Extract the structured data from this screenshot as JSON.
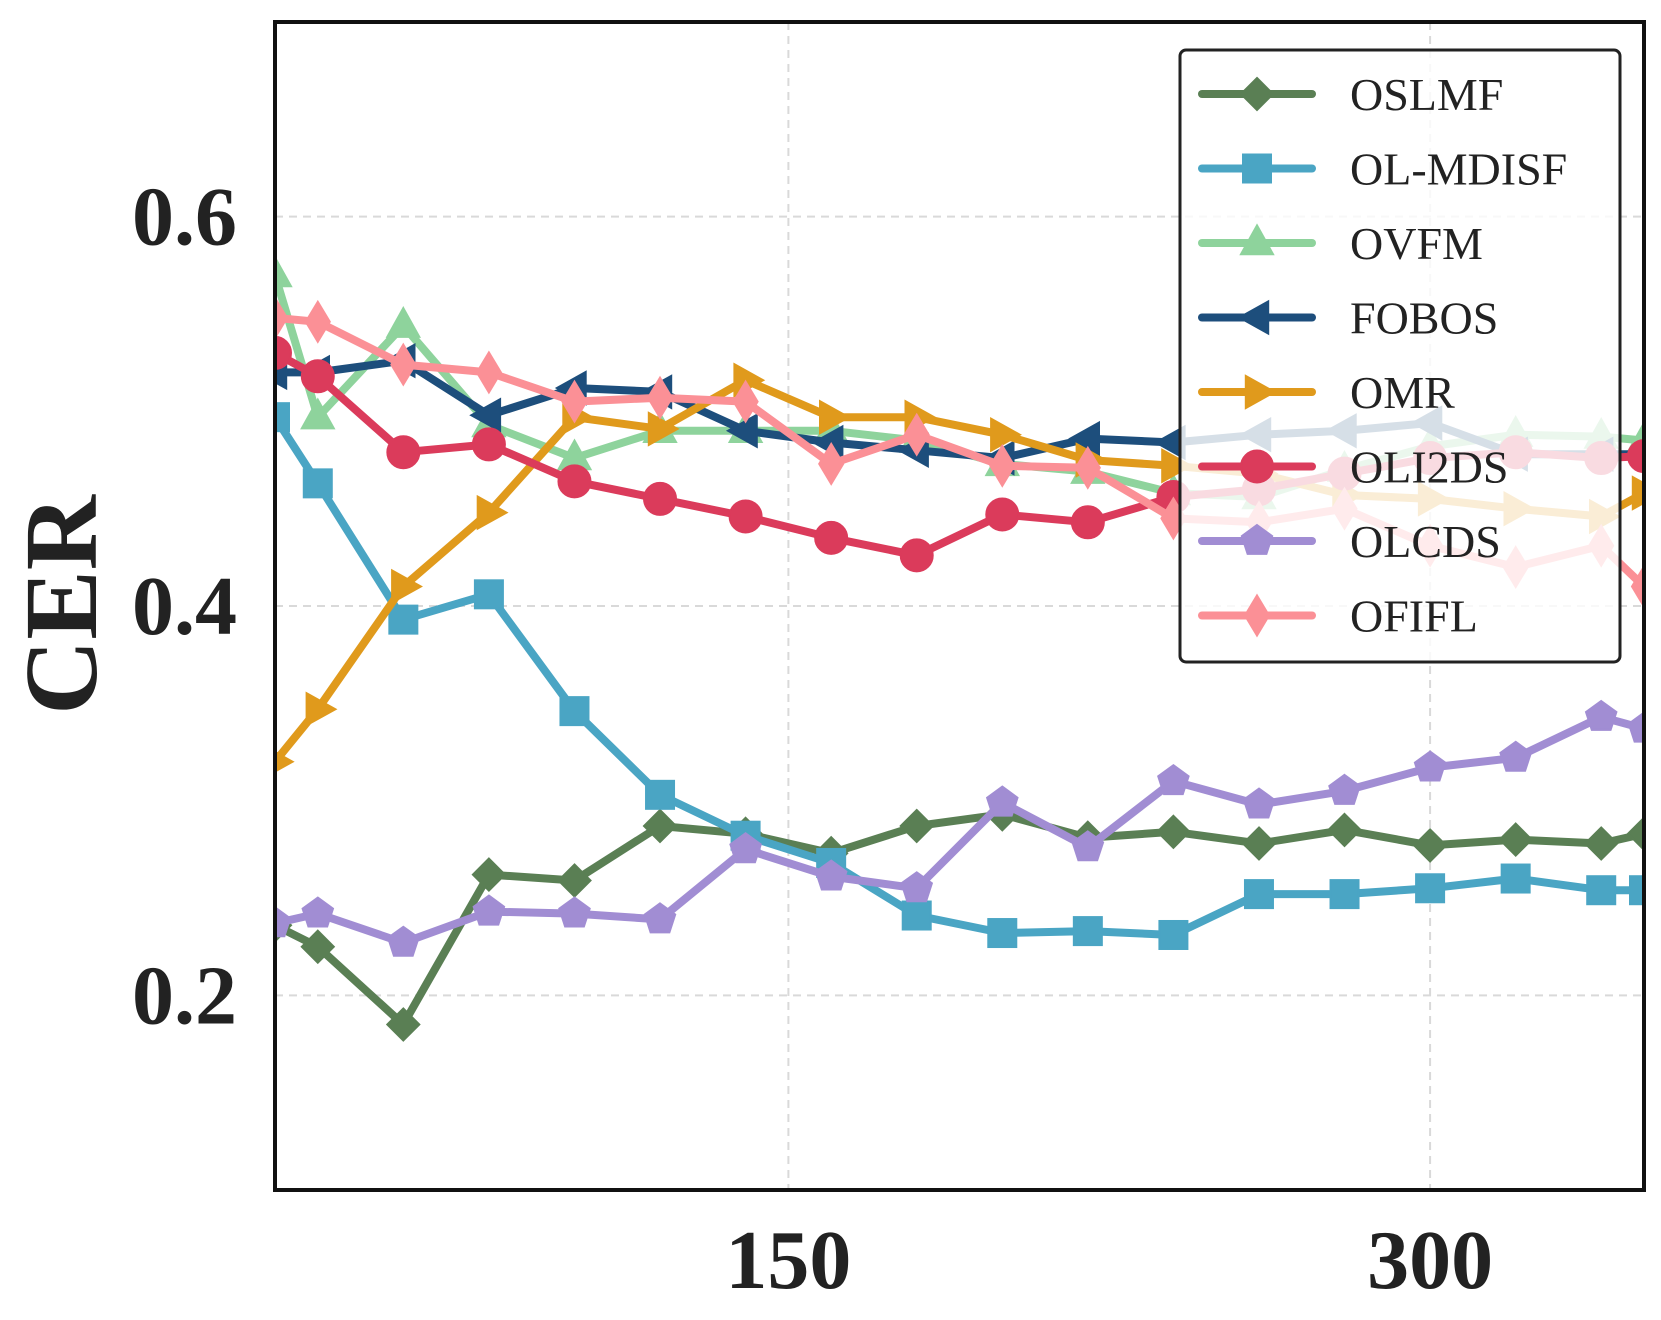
{
  "chart_data": {
    "type": "line",
    "title": "",
    "xlabel": "",
    "ylabel": "CER",
    "xlim": [
      30,
      350
    ],
    "ylim": [
      0.1,
      0.7
    ],
    "xticks": [
      150,
      300
    ],
    "xtick_labels": [
      "150",
      "300"
    ],
    "yticks": [
      0.2,
      0.4,
      0.6
    ],
    "ytick_labels": [
      "0.2",
      "0.4",
      "0.6"
    ],
    "grid": true,
    "legend_position": "top-right",
    "x": [
      30,
      40,
      60,
      80,
      100,
      120,
      140,
      160,
      180,
      200,
      220,
      240,
      260,
      280,
      300,
      320,
      340,
      350
    ],
    "series": [
      {
        "name": "OSLMF",
        "color": "#5a7f54",
        "marker": "diamond",
        "values": [
          0.236,
          0.225,
          0.185,
          0.262,
          0.259,
          0.287,
          0.283,
          0.273,
          0.287,
          0.293,
          0.281,
          0.284,
          0.278,
          0.285,
          0.277,
          0.28,
          0.278,
          0.283
        ]
      },
      {
        "name": "OL-MDISF",
        "color": "#4aa5c4",
        "marker": "square",
        "values": [
          0.497,
          0.463,
          0.393,
          0.406,
          0.346,
          0.303,
          0.282,
          0.268,
          0.241,
          0.232,
          0.233,
          0.231,
          0.252,
          0.252,
          0.255,
          0.26,
          0.254,
          0.254
        ]
      },
      {
        "name": "OVFM",
        "color": "#8ed39c",
        "marker": "triangle-up",
        "values": [
          0.57,
          0.497,
          0.544,
          0.493,
          0.476,
          0.49,
          0.49,
          0.49,
          0.485,
          0.473,
          0.469,
          0.458,
          0.456,
          0.47,
          0.482,
          0.488,
          0.487,
          0.485
        ]
      },
      {
        "name": "FOBOS",
        "color": "#1d4e7c",
        "marker": "triangle-left",
        "values": [
          0.52,
          0.52,
          0.526,
          0.498,
          0.512,
          0.51,
          0.49,
          0.484,
          0.48,
          0.476,
          0.486,
          0.484,
          0.488,
          0.49,
          0.494,
          0.478,
          0.478,
          0.478
        ]
      },
      {
        "name": "OMR",
        "color": "#e09a1c",
        "marker": "triangle-right",
        "values": [
          0.32,
          0.347,
          0.41,
          0.448,
          0.497,
          0.491,
          0.516,
          0.497,
          0.497,
          0.488,
          0.475,
          0.472,
          0.468,
          0.457,
          0.455,
          0.45,
          0.446,
          0.458
        ]
      },
      {
        "name": "OLI2DS",
        "color": "#db3b5b",
        "marker": "circle",
        "values": [
          0.53,
          0.518,
          0.479,
          0.483,
          0.464,
          0.455,
          0.446,
          0.435,
          0.426,
          0.447,
          0.443,
          0.456,
          0.46,
          0.468,
          0.476,
          0.479,
          0.476,
          0.477
        ]
      },
      {
        "name": "OLCDS",
        "color": "#a18dd3",
        "marker": "pentagon",
        "values": [
          0.237,
          0.242,
          0.227,
          0.243,
          0.242,
          0.239,
          0.275,
          0.261,
          0.255,
          0.299,
          0.276,
          0.31,
          0.298,
          0.305,
          0.317,
          0.322,
          0.343,
          0.337
        ]
      },
      {
        "name": "OFIFL",
        "color": "#fb9096",
        "marker": "thin-diamond",
        "values": [
          0.548,
          0.546,
          0.524,
          0.52,
          0.505,
          0.507,
          0.505,
          0.473,
          0.488,
          0.472,
          0.471,
          0.445,
          0.443,
          0.45,
          0.431,
          0.42,
          0.431,
          0.41
        ]
      }
    ]
  }
}
